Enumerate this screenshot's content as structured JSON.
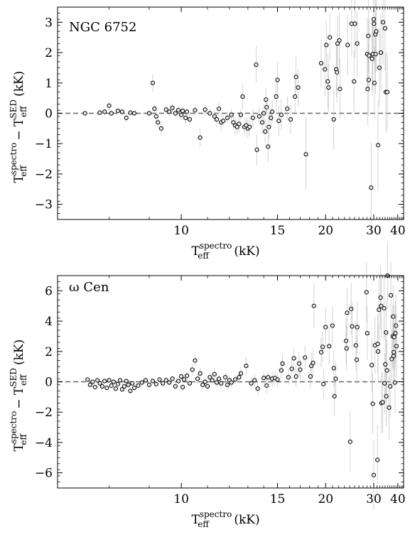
{
  "chart_data": [
    {
      "type": "scatter",
      "annotation": "NGC 6752",
      "xlabel": {
        "main": "T",
        "sub": "eff",
        "sup": "spectro",
        "unit": "(kK)"
      },
      "ylabel": {
        "p1": "T",
        "p1sub": "eff",
        "p1sup": "spectro",
        "op": "−",
        "p2": "T",
        "p2sub": "eff",
        "p2sup": "SED",
        "unit": "(kK)"
      },
      "xscale": "reciprocal",
      "xlim": [
        7.0,
        43.5
      ],
      "ylim": [
        -3.5,
        3.5
      ],
      "xticks": [
        10,
        15,
        20,
        30,
        40
      ],
      "yticks": [
        -3,
        -2,
        -1,
        0,
        1,
        2,
        3
      ],
      "zero_line": 0,
      "points": [
        [
          7.5,
          0.0,
          0.05
        ],
        [
          7.8,
          0.02,
          0.1
        ],
        [
          7.9,
          0.05,
          0.12
        ],
        [
          8.0,
          0.25,
          0.15
        ],
        [
          8.05,
          0.0,
          0.1
        ],
        [
          8.2,
          0.08,
          0.1
        ],
        [
          8.3,
          0.05,
          0.12
        ],
        [
          8.4,
          -0.15,
          0.15
        ],
        [
          8.5,
          0.02,
          0.1
        ],
        [
          8.6,
          0.0,
          0.1
        ],
        [
          9.0,
          0.0,
          0.12
        ],
        [
          9.1,
          1.0,
          0.3
        ],
        [
          9.15,
          0.15,
          0.15
        ],
        [
          9.2,
          -0.1,
          0.2
        ],
        [
          9.25,
          -0.3,
          0.2
        ],
        [
          9.35,
          -0.5,
          0.25
        ],
        [
          9.5,
          0.12,
          0.15
        ],
        [
          9.6,
          0.05,
          0.1
        ],
        [
          9.7,
          0.18,
          0.15
        ],
        [
          9.8,
          0.0,
          0.12
        ],
        [
          9.9,
          0.1,
          0.15
        ],
        [
          10.0,
          -0.05,
          0.2
        ],
        [
          10.05,
          0.08,
          0.15
        ],
        [
          10.15,
          -0.15,
          0.2
        ],
        [
          10.2,
          0.05,
          0.12
        ],
        [
          10.3,
          -0.2,
          0.2
        ],
        [
          10.5,
          0.1,
          0.2
        ],
        [
          10.7,
          -0.8,
          0.3
        ],
        [
          10.9,
          0.12,
          0.2
        ],
        [
          11.1,
          0.0,
          0.15
        ],
        [
          11.3,
          -0.1,
          0.2
        ],
        [
          11.4,
          -0.2,
          0.25
        ],
        [
          11.5,
          0.15,
          0.2
        ],
        [
          11.6,
          -0.3,
          0.3
        ],
        [
          11.7,
          -0.25,
          0.2
        ],
        [
          11.9,
          -0.15,
          0.2
        ],
        [
          12.1,
          -0.05,
          0.2
        ],
        [
          12.2,
          -0.3,
          0.25
        ],
        [
          12.3,
          -0.4,
          0.3
        ],
        [
          12.4,
          -0.45,
          0.25
        ],
        [
          12.5,
          -0.35,
          0.3
        ],
        [
          12.6,
          -0.05,
          0.2
        ],
        [
          12.7,
          0.55,
          0.4
        ],
        [
          12.8,
          -0.45,
          0.3
        ],
        [
          12.9,
          -0.4,
          0.3
        ],
        [
          13.0,
          -0.5,
          0.3
        ],
        [
          13.1,
          -0.45,
          0.3
        ],
        [
          13.3,
          -0.15,
          0.3
        ],
        [
          13.5,
          1.6,
          0.6
        ],
        [
          13.55,
          -1.2,
          0.5
        ],
        [
          13.7,
          -0.1,
          0.3
        ],
        [
          13.9,
          -0.3,
          0.4
        ],
        [
          14.0,
          0.0,
          0.3
        ],
        [
          14.1,
          -0.6,
          0.4
        ],
        [
          14.15,
          0.45,
          0.4
        ],
        [
          14.2,
          0.2,
          0.3
        ],
        [
          14.3,
          -1.1,
          0.5
        ],
        [
          14.35,
          -0.45,
          0.4
        ],
        [
          14.5,
          -0.15,
          0.3
        ],
        [
          14.6,
          0.05,
          0.4
        ],
        [
          14.9,
          0.55,
          0.5
        ],
        [
          15.0,
          1.1,
          0.6
        ],
        [
          15.1,
          -0.25,
          0.5
        ],
        [
          15.3,
          -0.05,
          0.5
        ],
        [
          15.8,
          0.15,
          0.4
        ],
        [
          16.1,
          -0.2,
          0.5
        ],
        [
          16.5,
          0.55,
          0.6
        ],
        [
          16.6,
          1.2,
          0.7
        ],
        [
          16.8,
          0.85,
          0.6
        ],
        [
          17.6,
          -1.35,
          1.2
        ],
        [
          19.4,
          1.65,
          0.8
        ],
        [
          19.9,
          1.45,
          0.9
        ],
        [
          20.1,
          2.25,
          0.8
        ],
        [
          20.3,
          1.05,
          0.9
        ],
        [
          20.4,
          0.85,
          0.8
        ],
        [
          20.6,
          2.5,
          0.8
        ],
        [
          21.2,
          -0.2,
          1.0
        ],
        [
          21.6,
          1.45,
          0.9
        ],
        [
          21.7,
          1.35,
          1.0
        ],
        [
          21.8,
          2.3,
          0.9
        ],
        [
          22.1,
          2.4,
          0.9
        ],
        [
          22.2,
          0.8,
          1.0
        ],
        [
          23.6,
          2.25,
          1.0
        ],
        [
          24.4,
          2.95,
          1.1
        ],
        [
          24.9,
          1.05,
          1.0
        ],
        [
          25.1,
          2.95,
          1.1
        ],
        [
          25.6,
          2.3,
          1.1
        ],
        [
          28.1,
          1.95,
          1.2
        ],
        [
          28.2,
          0.8,
          1.2
        ],
        [
          28.4,
          2.55,
          1.2
        ],
        [
          28.5,
          1.1,
          1.2
        ],
        [
          28.6,
          1.9,
          1.2
        ],
        [
          29.2,
          -2.45,
          1.5
        ],
        [
          29.5,
          1.8,
          1.2
        ],
        [
          29.7,
          1.95,
          1.2
        ],
        [
          30.0,
          3.1,
          1.3
        ],
        [
          30.05,
          2.95,
          1.3
        ],
        [
          30.2,
          1.0,
          1.2
        ],
        [
          30.5,
          2.6,
          1.3
        ],
        [
          30.6,
          1.95,
          1.3
        ],
        [
          30.8,
          2.7,
          1.3
        ],
        [
          31.4,
          -1.05,
          1.5
        ],
        [
          31.9,
          1.5,
          1.3
        ],
        [
          32.4,
          2.0,
          1.3
        ],
        [
          33.2,
          3.0,
          1.4
        ],
        [
          34.0,
          2.8,
          1.4
        ],
        [
          34.3,
          0.7,
          1.3
        ],
        [
          34.9,
          0.7,
          1.3
        ]
      ]
    },
    {
      "type": "scatter",
      "annotation": "ω Cen",
      "xlabel": {
        "main": "T",
        "sub": "eff",
        "sup": "spectro",
        "unit": "(kK)"
      },
      "ylabel": {
        "p1": "T",
        "p1sub": "eff",
        "p1sup": "spectro",
        "op": "−",
        "p2": "T",
        "p2sub": "eff",
        "p2sup": "SED",
        "unit": "(kK)"
      },
      "xscale": "reciprocal",
      "xlim": [
        7.0,
        43.5
      ],
      "ylim": [
        -7.0,
        7.0
      ],
      "xticks": [
        10,
        15,
        20,
        30,
        40
      ],
      "yticks": [
        -6,
        -4,
        -2,
        0,
        2,
        4,
        6
      ],
      "zero_line": 0,
      "points": [
        [
          7.55,
          0.15,
          0.1
        ],
        [
          7.6,
          -0.2,
          0.15
        ],
        [
          7.65,
          0.0,
          0.1
        ],
        [
          7.7,
          -0.35,
          0.15
        ],
        [
          7.75,
          0.1,
          0.1
        ],
        [
          7.8,
          -0.1,
          0.15
        ],
        [
          7.85,
          -0.3,
          0.2
        ],
        [
          7.9,
          0.05,
          0.15
        ],
        [
          7.95,
          -0.4,
          0.2
        ],
        [
          8.0,
          0.1,
          0.15
        ],
        [
          8.05,
          -0.25,
          0.2
        ],
        [
          8.1,
          0.0,
          0.15
        ],
        [
          8.15,
          -0.45,
          0.2
        ],
        [
          8.2,
          -0.15,
          0.15
        ],
        [
          8.25,
          0.1,
          0.15
        ],
        [
          8.3,
          -0.5,
          0.2
        ],
        [
          8.35,
          -0.3,
          0.2
        ],
        [
          8.4,
          0.05,
          0.15
        ],
        [
          8.45,
          -0.2,
          0.2
        ],
        [
          8.5,
          -0.6,
          0.2
        ],
        [
          8.55,
          -0.1,
          0.15
        ],
        [
          8.6,
          -0.4,
          0.2
        ],
        [
          8.7,
          -0.25,
          0.2
        ],
        [
          8.8,
          -0.05,
          0.2
        ],
        [
          8.9,
          0.1,
          0.2
        ],
        [
          9.0,
          -0.2,
          0.2
        ],
        [
          9.1,
          0.05,
          0.2
        ],
        [
          9.2,
          -0.15,
          0.2
        ],
        [
          9.3,
          0.15,
          0.2
        ],
        [
          9.4,
          -0.1,
          0.2
        ],
        [
          9.5,
          0.1,
          0.2
        ],
        [
          9.6,
          -0.05,
          0.2
        ],
        [
          9.7,
          0.2,
          0.2
        ],
        [
          9.8,
          -0.3,
          0.2
        ],
        [
          9.9,
          0.05,
          0.2
        ],
        [
          10.0,
          0.35,
          0.25
        ],
        [
          10.05,
          -0.35,
          0.25
        ],
        [
          10.1,
          0.15,
          0.2
        ],
        [
          10.2,
          0.4,
          0.3
        ],
        [
          10.3,
          -0.1,
          0.2
        ],
        [
          10.4,
          0.8,
          0.4
        ],
        [
          10.5,
          1.4,
          0.4
        ],
        [
          10.6,
          0.2,
          0.3
        ],
        [
          10.7,
          0.55,
          0.4
        ],
        [
          10.8,
          -0.2,
          0.3
        ],
        [
          10.9,
          0.0,
          0.3
        ],
        [
          11.0,
          -0.3,
          0.3
        ],
        [
          11.1,
          0.3,
          0.3
        ],
        [
          11.2,
          0.1,
          0.3
        ],
        [
          11.3,
          0.5,
          0.4
        ],
        [
          11.4,
          -0.05,
          0.3
        ],
        [
          11.5,
          0.2,
          0.3
        ],
        [
          11.6,
          -0.1,
          0.3
        ],
        [
          11.8,
          0.3,
          0.3
        ],
        [
          11.9,
          -0.2,
          0.3
        ],
        [
          12.0,
          0.1,
          0.3
        ],
        [
          12.1,
          -0.05,
          0.3
        ],
        [
          12.3,
          0.15,
          0.3
        ],
        [
          12.5,
          0.3,
          0.4
        ],
        [
          12.6,
          0.55,
          0.4
        ],
        [
          12.9,
          1.05,
          0.6
        ],
        [
          13.2,
          -0.1,
          0.4
        ],
        [
          13.4,
          0.1,
          0.4
        ],
        [
          13.6,
          -0.45,
          0.4
        ],
        [
          14.0,
          0.25,
          0.4
        ],
        [
          14.2,
          -0.25,
          0.5
        ],
        [
          14.3,
          0.3,
          0.4
        ],
        [
          14.6,
          0.2,
          0.5
        ],
        [
          14.8,
          0.25,
          0.5
        ],
        [
          15.0,
          0.15,
          0.5
        ],
        [
          15.3,
          0.75,
          0.6
        ],
        [
          15.4,
          1.2,
          0.6
        ],
        [
          15.9,
          0.3,
          0.5
        ],
        [
          16.2,
          0.85,
          0.7
        ],
        [
          16.4,
          1.55,
          0.7
        ],
        [
          16.6,
          0.35,
          0.7
        ],
        [
          16.9,
          1.2,
          0.8
        ],
        [
          17.0,
          0.8,
          0.7
        ],
        [
          17.5,
          1.6,
          0.8
        ],
        [
          18.1,
          0.35,
          0.8
        ],
        [
          18.2,
          1.05,
          0.9
        ],
        [
          18.4,
          1.25,
          0.9
        ],
        [
          18.5,
          5.0,
          1.5
        ],
        [
          19.4,
          1.95,
          1.0
        ],
        [
          19.6,
          2.3,
          1.0
        ],
        [
          19.7,
          -0.15,
          1.0
        ],
        [
          20.0,
          3.6,
          1.3
        ],
        [
          20.5,
          2.35,
          1.2
        ],
        [
          21.0,
          3.7,
          1.3
        ],
        [
          21.2,
          0.9,
          1.2
        ],
        [
          21.3,
          -0.95,
          1.3
        ],
        [
          21.5,
          0.2,
          1.2
        ],
        [
          23.3,
          2.7,
          1.5
        ],
        [
          23.4,
          2.2,
          1.5
        ],
        [
          23.5,
          4.55,
          1.6
        ],
        [
          24.1,
          -3.95,
          2.0
        ],
        [
          24.3,
          4.8,
          1.7
        ],
        [
          24.5,
          3.65,
          1.6
        ],
        [
          25.3,
          2.4,
          1.6
        ],
        [
          25.5,
          1.45,
          1.6
        ],
        [
          25.6,
          3.6,
          1.7
        ],
        [
          27.9,
          5.9,
          2.0
        ],
        [
          28.1,
          3.2,
          1.8
        ],
        [
          29.4,
          1.1,
          1.8
        ],
        [
          29.7,
          -1.45,
          2.0
        ],
        [
          30.0,
          -6.15,
          2.3
        ],
        [
          30.4,
          2.4,
          1.9
        ],
        [
          31.2,
          -5.15,
          2.3
        ],
        [
          31.3,
          2.5,
          1.9
        ],
        [
          31.4,
          2.0,
          1.9
        ],
        [
          31.7,
          4.75,
          2.0
        ],
        [
          32.3,
          5.55,
          2.1
        ],
        [
          32.5,
          5.0,
          2.1
        ],
        [
          32.6,
          -1.4,
          2.0
        ],
        [
          33.1,
          -1.35,
          2.0
        ],
        [
          33.6,
          4.85,
          2.1
        ],
        [
          33.8,
          -0.1,
          2.0
        ],
        [
          34.1,
          1.15,
          2.0
        ],
        [
          34.4,
          3.25,
          2.1
        ],
        [
          34.5,
          -0.95,
          2.0
        ],
        [
          34.8,
          0.75,
          2.0
        ],
        [
          35.0,
          7.0,
          2.2
        ],
        [
          35.7,
          -1.7,
          2.1
        ],
        [
          36.2,
          -0.3,
          2.0
        ],
        [
          36.5,
          5.7,
          2.2
        ],
        [
          36.9,
          1.5,
          2.0
        ],
        [
          37.4,
          3.0,
          2.1
        ],
        [
          37.6,
          4.3,
          2.1
        ],
        [
          37.8,
          1.7,
          2.0
        ],
        [
          37.9,
          1.95,
          2.0
        ],
        [
          38.1,
          2.95,
          2.1
        ],
        [
          38.5,
          -0.05,
          2.0
        ],
        [
          38.7,
          3.2,
          2.1
        ],
        [
          39.0,
          3.7,
          2.1
        ],
        [
          39.3,
          2.35,
          2.1
        ]
      ]
    }
  ]
}
